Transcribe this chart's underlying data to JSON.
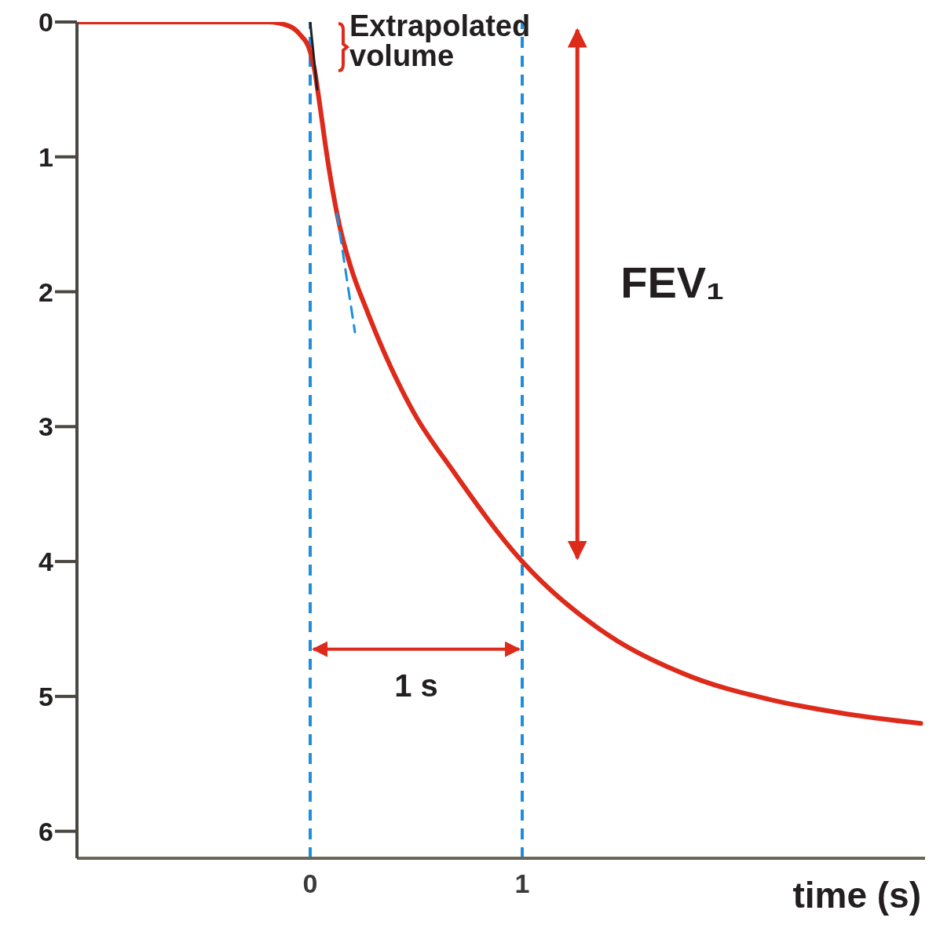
{
  "chart_data": {
    "type": "line",
    "xlabel": "time (s)",
    "xlim": [
      -1.1,
      2.9
    ],
    "xticks": [
      0,
      1
    ],
    "ylim": [
      6.2,
      0
    ],
    "yticks": [
      0,
      1,
      2,
      3,
      4,
      5,
      6
    ],
    "grid": false,
    "marker": "none",
    "series": [
      {
        "color": "#dd2a1b",
        "line_style": "solid",
        "x": [
          -1.1,
          -0.5,
          -0.2,
          -0.1,
          -0.05,
          0,
          0.02,
          0.044,
          0.08,
          0.137,
          0.19,
          0.27,
          0.49,
          0.67,
          1,
          1.41,
          1.79,
          2.16,
          2.53,
          2.88
        ],
        "values": [
          0,
          0,
          0,
          0.03,
          0.09,
          0.22,
          0.35,
          0.6,
          1.0,
          1.5,
          1.81,
          2.15,
          2.9,
          3.32,
          4.0,
          4.55,
          4.85,
          5.02,
          5.13,
          5.2
        ]
      },
      {
        "color": "#231f20",
        "line_style": "solid",
        "x": [
          0,
          0.033
        ],
        "values": [
          0,
          0.5
        ]
      },
      {
        "color": "#1e8fdc",
        "line_style": "dashed",
        "x": [
          0.126,
          0.211
        ],
        "values": [
          1.42,
          2.3
        ]
      }
    ],
    "ref_lines": [
      {
        "axis": "x",
        "value": 0,
        "color": "#1e8fdc",
        "line_style": "dashed"
      },
      {
        "axis": "x",
        "value": 1,
        "color": "#1e8fdc",
        "line_style": "dashed"
      }
    ],
    "annotations": [
      "Extrapolated volume",
      "FEV₁",
      "1 s"
    ]
  }
}
